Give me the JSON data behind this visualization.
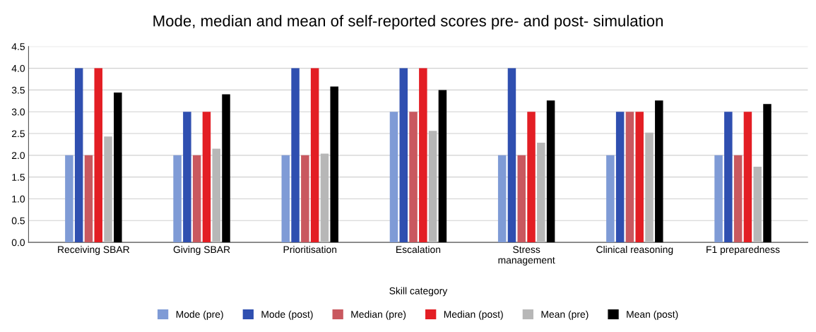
{
  "chart_data": {
    "type": "bar",
    "title": "Mode, median and mean of self-reported scores pre- and post- simulation",
    "xlabel": "Skill category",
    "categories": [
      "Receiving SBAR",
      "Giving SBAR",
      "Prioritisation",
      "Escalation",
      "Stress\nmanagement",
      "Clinical reasoning",
      "F1 preparedness"
    ],
    "series": [
      {
        "name": "Mode (pre)",
        "color": "#7f9bd6",
        "values": [
          2,
          2,
          2,
          3,
          2,
          2,
          2
        ]
      },
      {
        "name": "Mode (post)",
        "color": "#2f4fb0",
        "values": [
          4,
          3,
          4,
          4,
          4,
          3,
          3
        ]
      },
      {
        "name": "Median (pre)",
        "color": "#c9585f",
        "values": [
          2,
          2,
          2,
          3,
          2,
          3,
          2
        ]
      },
      {
        "name": "Median (post)",
        "color": "#e31e24",
        "values": [
          4,
          3,
          4,
          4,
          3,
          3,
          3
        ]
      },
      {
        "name": "Mean (pre)",
        "color": "#b7b7b7",
        "values": [
          2.43,
          2.15,
          2.04,
          2.56,
          2.29,
          2.52,
          1.74
        ]
      },
      {
        "name": "Mean (post)",
        "color": "#000000",
        "values": [
          3.44,
          3.4,
          3.58,
          3.5,
          3.26,
          3.26,
          3.18
        ]
      }
    ],
    "ylim": [
      0,
      4.5
    ],
    "yticks": [
      {
        "value": 0,
        "label": "0.0"
      },
      {
        "value": 0.5,
        "label": "0.5"
      },
      {
        "value": 1,
        "label": "1.0"
      },
      {
        "value": 1.5,
        "label": "1.5"
      },
      {
        "value": 2,
        "label": "2.0"
      },
      {
        "value": 2.5,
        "label": "2.5"
      },
      {
        "value": 3,
        "label": "3.0"
      },
      {
        "value": 3.5,
        "label": "3.5"
      },
      {
        "value": 4,
        "label": "4.0"
      },
      {
        "value": 4.5,
        "label": "4.5"
      }
    ],
    "grid": "y",
    "legend": "bottom"
  }
}
